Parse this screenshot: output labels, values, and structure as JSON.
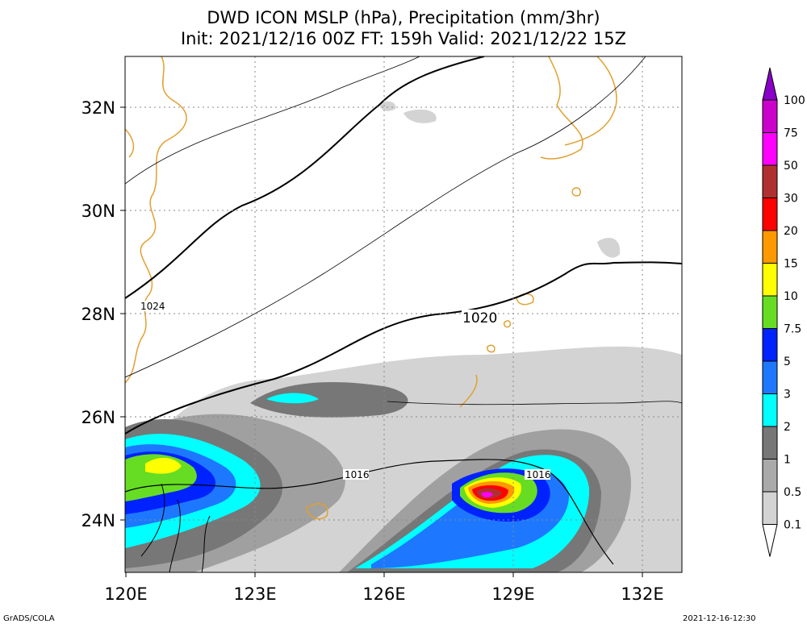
{
  "title": {
    "line1": "DWD ICON MSLP (hPa), Precipitation (mm/3hr)",
    "line2": "Init: 2021/12/16 00Z  FT: 159h  Valid: 2021/12/22 15Z"
  },
  "axes": {
    "lat_labels": [
      "32N",
      "30N",
      "28N",
      "26N",
      "24N"
    ],
    "lon_labels": [
      "120E",
      "123E",
      "126E",
      "129E",
      "132E"
    ]
  },
  "contour_labels": [
    "1024",
    "1020",
    "1016",
    "1016"
  ],
  "colorbar": {
    "levels": [
      "100",
      "75",
      "50",
      "30",
      "20",
      "15",
      "10",
      "7.5",
      "5",
      "3",
      "2",
      "1",
      "0.5",
      "0.1"
    ],
    "colors": [
      "#8a00c8",
      "#cc00cc",
      "#ff00ff",
      "#b03030",
      "#ff0000",
      "#ff9900",
      "#ffff00",
      "#66dd22",
      "#0022ff",
      "#1e78ff",
      "#00ffff",
      "#777777",
      "#aaaaaa",
      "#d3d3d3",
      "#ffffff"
    ]
  },
  "footer": {
    "left": "GrADS/COLA",
    "right": "2021-12-16-12:30"
  }
}
